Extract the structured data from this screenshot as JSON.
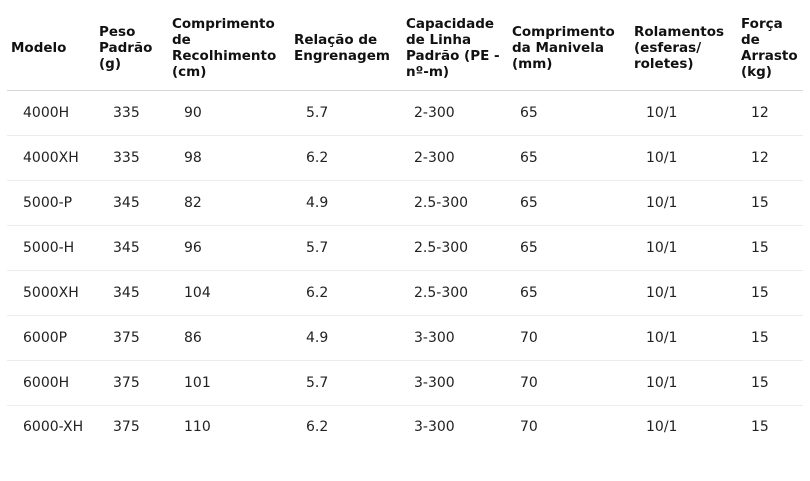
{
  "table": {
    "headers": [
      "Modelo",
      "Peso Padrão (g)",
      "Comprimento de Recolhimento (cm)",
      "Relação de Engrenagem",
      "Capacidade de Linha Padrão (PE - nº-m)",
      "Comprimento da Manivela (mm)",
      "Rolamentos (esferas/ roletes)",
      "Força de Arrasto (kg)"
    ],
    "rows": [
      [
        "4000H",
        "335",
        "90",
        "5.7",
        "2-300",
        "65",
        "10/1",
        "12"
      ],
      [
        "4000XH",
        "335",
        "98",
        "6.2",
        "2-300",
        "65",
        "10/1",
        "12"
      ],
      [
        "5000-P",
        "345",
        "82",
        "4.9",
        "2.5-300",
        "65",
        "10/1",
        "15"
      ],
      [
        "5000-H",
        "345",
        "96",
        "5.7",
        "2.5-300",
        "65",
        "10/1",
        "15"
      ],
      [
        "5000XH",
        "345",
        "104",
        "6.2",
        "2.5-300",
        "65",
        "10/1",
        "15"
      ],
      [
        "6000P",
        "375",
        "86",
        "4.9",
        "3-300",
        "70",
        "10/1",
        "15"
      ],
      [
        "6000H",
        "375",
        "101",
        "5.7",
        "3-300",
        "70",
        "10/1",
        "15"
      ],
      [
        "6000-XH",
        "375",
        "110",
        "6.2",
        "3-300",
        "70",
        "10/1",
        "15"
      ]
    ]
  }
}
